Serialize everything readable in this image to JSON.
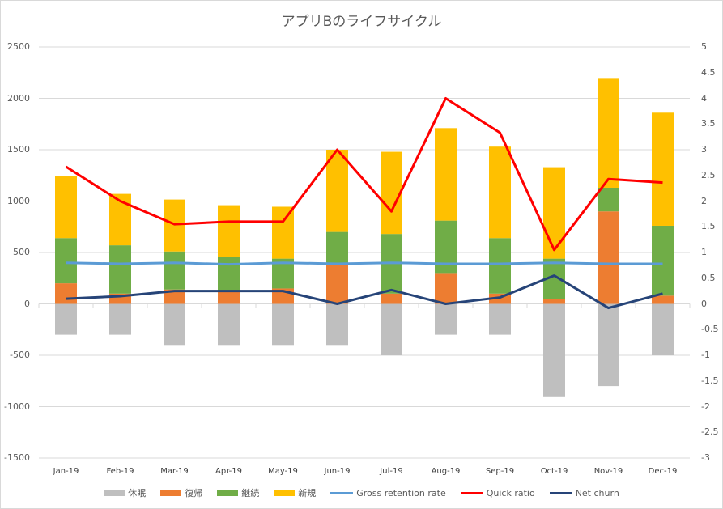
{
  "chart_data": {
    "type": "bar",
    "subtype": "stacked-bar-with-lines-dual-axis",
    "title": "アプリBのライフサイクル",
    "categories": [
      "Jan-19",
      "Feb-19",
      "Mar-19",
      "Apr-19",
      "May-19",
      "Jun-19",
      "Jul-19",
      "Aug-19",
      "Sep-19",
      "Oct-19",
      "Nov-19",
      "Dec-19"
    ],
    "y_left": {
      "min": -1500,
      "max": 2500,
      "step": 500,
      "ticks": [
        "2500",
        "2000",
        "1500",
        "1000",
        "500",
        "0",
        "-500",
        "-1000",
        "-1500"
      ]
    },
    "y_right": {
      "min": -3,
      "max": 5,
      "step": 0.5,
      "ticks": [
        "5",
        "4.5",
        "4",
        "3.5",
        "3",
        "2.5",
        "2",
        "1.5",
        "1",
        "0.5",
        "0",
        "-0.5",
        "-1",
        "-1.5",
        "-2",
        "-2.5",
        "-3"
      ]
    },
    "bar_series": [
      {
        "name": "休眠",
        "color": "#BFBFBF",
        "values": [
          -300,
          -300,
          -400,
          -400,
          -400,
          -400,
          -500,
          -300,
          -300,
          -900,
          -800,
          -500
        ]
      },
      {
        "name": "復帰",
        "color": "#ED7D31",
        "values": [
          200,
          100,
          140,
          120,
          150,
          380,
          100,
          300,
          100,
          50,
          900,
          80
        ]
      },
      {
        "name": "継続",
        "color": "#70AD47",
        "values": [
          440,
          470,
          370,
          335,
          290,
          320,
          580,
          510,
          540,
          390,
          230,
          680
        ]
      },
      {
        "name": "新規",
        "color": "#FFC000",
        "values": [
          600,
          500,
          505,
          505,
          505,
          800,
          800,
          900,
          890,
          890,
          1060,
          1100
        ]
      }
    ],
    "line_series": [
      {
        "name": "Gross retention rate",
        "axis": "right",
        "color": "#5B9BD5",
        "values": [
          0.8,
          0.78,
          0.8,
          0.77,
          0.8,
          0.78,
          0.8,
          0.78,
          0.78,
          0.8,
          0.78,
          0.78
        ]
      },
      {
        "name": "Quick ratio",
        "axis": "right",
        "color": "#FF0000",
        "values": [
          2.67,
          2.0,
          1.55,
          1.6,
          1.6,
          3.0,
          1.8,
          4.0,
          3.33,
          1.05,
          2.43,
          2.36
        ]
      },
      {
        "name": "Net churn",
        "axis": "right",
        "color": "#264478",
        "values": [
          0.1,
          0.15,
          0.25,
          0.25,
          0.25,
          0.0,
          0.27,
          0.0,
          0.125,
          0.55,
          -0.08,
          0.2
        ]
      }
    ],
    "legend_position": "bottom",
    "grid": true
  },
  "legend": [
    {
      "label": "休眠",
      "kind": "box",
      "color": "#BFBFBF"
    },
    {
      "label": "復帰",
      "kind": "box",
      "color": "#ED7D31"
    },
    {
      "label": "継続",
      "kind": "box",
      "color": "#70AD47"
    },
    {
      "label": "新規",
      "kind": "box",
      "color": "#FFC000"
    },
    {
      "label": "Gross retention rate",
      "kind": "line",
      "color": "#5B9BD5"
    },
    {
      "label": "Quick ratio",
      "kind": "line",
      "color": "#FF0000"
    },
    {
      "label": "Net churn",
      "kind": "line",
      "color": "#264478"
    }
  ]
}
